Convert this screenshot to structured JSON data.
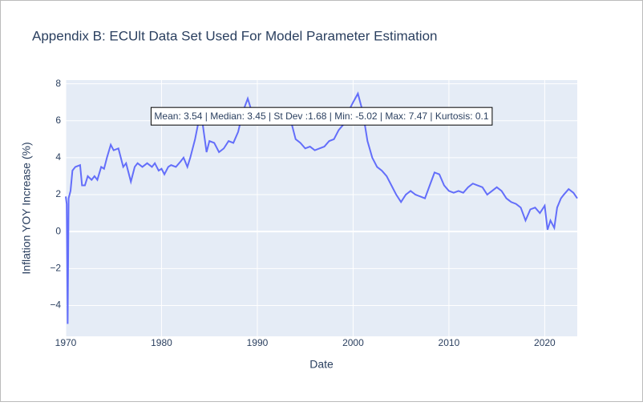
{
  "chart_data": {
    "type": "line",
    "title": "Appendix B: ECUlt Data Set Used For Model Parameter Estimation",
    "x_label": "Date",
    "y_label": "Inflation YOY Increase (%)",
    "annotation": "Mean: 3.54 | Median: 3.45 | St Dev :1.68 | Min: -5.02 | Max: 7.47 | Kurtosis: 0.1",
    "color": "#636efa",
    "grid": true,
    "x": [
      1970.0,
      1970.1,
      1970.2,
      1970.3,
      1970.5,
      1970.7,
      1971.0,
      1971.5,
      1971.7,
      1972.0,
      1972.3,
      1972.7,
      1973.0,
      1973.3,
      1973.7,
      1974.0,
      1974.3,
      1974.7,
      1975.0,
      1975.5,
      1976.0,
      1976.3,
      1976.8,
      1977.2,
      1977.5,
      1978.0,
      1978.5,
      1979.0,
      1979.3,
      1979.7,
      1980.0,
      1980.3,
      1980.7,
      1981.0,
      1981.5,
      1982.0,
      1982.3,
      1982.7,
      1983.0,
      1983.5,
      1984.0,
      1984.3,
      1984.7,
      1985.0,
      1985.5,
      1986.0,
      1986.5,
      1987.0,
      1987.5,
      1988.0,
      1988.5,
      1989.0,
      1989.3,
      1989.7,
      1990.0,
      1990.5,
      1991.0,
      1991.5,
      1992.0,
      1992.5,
      1993.0,
      1993.5,
      1994.0,
      1994.5,
      1995.0,
      1995.5,
      1996.0,
      1996.5,
      1997.0,
      1997.5,
      1998.0,
      1998.5,
      1999.0,
      1999.5,
      2000.0,
      2000.5,
      2001.0,
      2001.5,
      2002.0,
      2002.5,
      2003.0,
      2003.5,
      2004.0,
      2004.5,
      2005.0,
      2005.5,
      2006.0,
      2006.5,
      2007.0,
      2007.5,
      2008.0,
      2008.5,
      2009.0,
      2009.5,
      2010.0,
      2010.5,
      2011.0,
      2011.5,
      2012.0,
      2012.5,
      2013.0,
      2013.5,
      2014.0,
      2014.5,
      2015.0,
      2015.5,
      2016.0,
      2016.5,
      2017.0,
      2017.5,
      2018.0,
      2018.5,
      2019.0,
      2019.5,
      2020.0,
      2020.3,
      2020.6,
      2021.0,
      2021.3,
      2021.7,
      2022.0,
      2022.5,
      2023.0,
      2023.4
    ],
    "values": [
      1.9,
      1.5,
      -5.0,
      1.8,
      2.2,
      3.3,
      3.5,
      3.6,
      2.5,
      2.5,
      3.0,
      2.8,
      3.0,
      2.8,
      3.5,
      3.4,
      4.0,
      4.7,
      4.4,
      4.5,
      3.5,
      3.7,
      2.7,
      3.5,
      3.7,
      3.5,
      3.7,
      3.5,
      3.7,
      3.3,
      3.4,
      3.1,
      3.5,
      3.6,
      3.5,
      3.8,
      4.0,
      3.5,
      4.0,
      5.0,
      6.3,
      5.8,
      4.3,
      4.9,
      4.8,
      4.3,
      4.5,
      4.9,
      4.8,
      5.4,
      6.5,
      7.2,
      6.7,
      6.0,
      5.8,
      6.1,
      6.0,
      6.2,
      6.0,
      6.3,
      6.5,
      6.0,
      5.0,
      4.8,
      4.5,
      4.6,
      4.4,
      4.5,
      4.6,
      4.9,
      5.0,
      5.5,
      5.8,
      6.5,
      7.0,
      7.47,
      6.5,
      4.9,
      4.0,
      3.5,
      3.3,
      3.0,
      2.5,
      2.0,
      1.6,
      2.0,
      2.2,
      2.0,
      1.9,
      1.8,
      2.5,
      3.2,
      3.1,
      2.5,
      2.2,
      2.1,
      2.2,
      2.1,
      2.4,
      2.6,
      2.5,
      2.4,
      2.0,
      2.2,
      2.4,
      2.2,
      1.8,
      1.6,
      1.5,
      1.3,
      0.6,
      1.2,
      1.3,
      1.0,
      1.4,
      0.1,
      0.6,
      0.2,
      1.3,
      1.8,
      2.0,
      2.3,
      2.1,
      1.8
    ],
    "xlim": [
      1970,
      2023.4
    ],
    "ylim": [
      -5.67,
      8.2
    ],
    "xticks": [
      1970,
      1980,
      1990,
      2000,
      2010,
      2020
    ],
    "yticks": [
      {
        "value": -4,
        "label": "−4"
      },
      {
        "value": -2,
        "label": "−2"
      },
      0,
      2,
      4,
      6,
      8
    ]
  }
}
